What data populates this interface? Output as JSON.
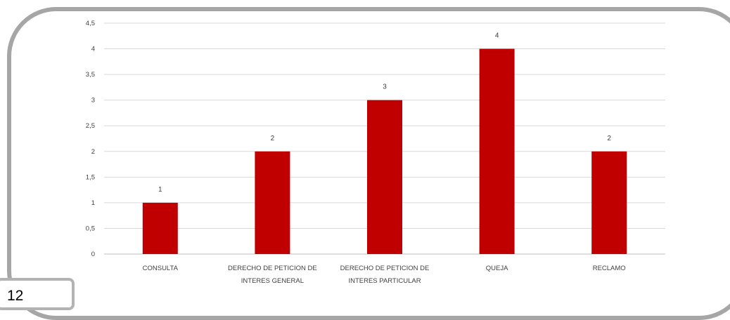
{
  "page": {
    "number": "12"
  },
  "chart_data": {
    "type": "bar",
    "categories": [
      [
        "CONSULTA"
      ],
      [
        "DERECHO DE PETICION DE",
        "INTERES GENERAL"
      ],
      [
        "DERECHO DE PETICION DE",
        "INTERES PARTICULAR"
      ],
      [
        "QUEJA"
      ],
      [
        "RECLAMO"
      ]
    ],
    "values": [
      1,
      2,
      3,
      4,
      2
    ],
    "data_labels": [
      "1",
      "2",
      "3",
      "4",
      "2"
    ],
    "y_ticks": [
      "0",
      "0,5",
      "1",
      "1,5",
      "2",
      "2,5",
      "3",
      "3,5",
      "4",
      "4,5"
    ],
    "ylim": [
      0,
      4.5
    ],
    "grid": true,
    "legend": "none",
    "colors": {
      "bar": "#c00000",
      "grid": "#d9d9d9",
      "axis": "#bfbfbf"
    }
  }
}
